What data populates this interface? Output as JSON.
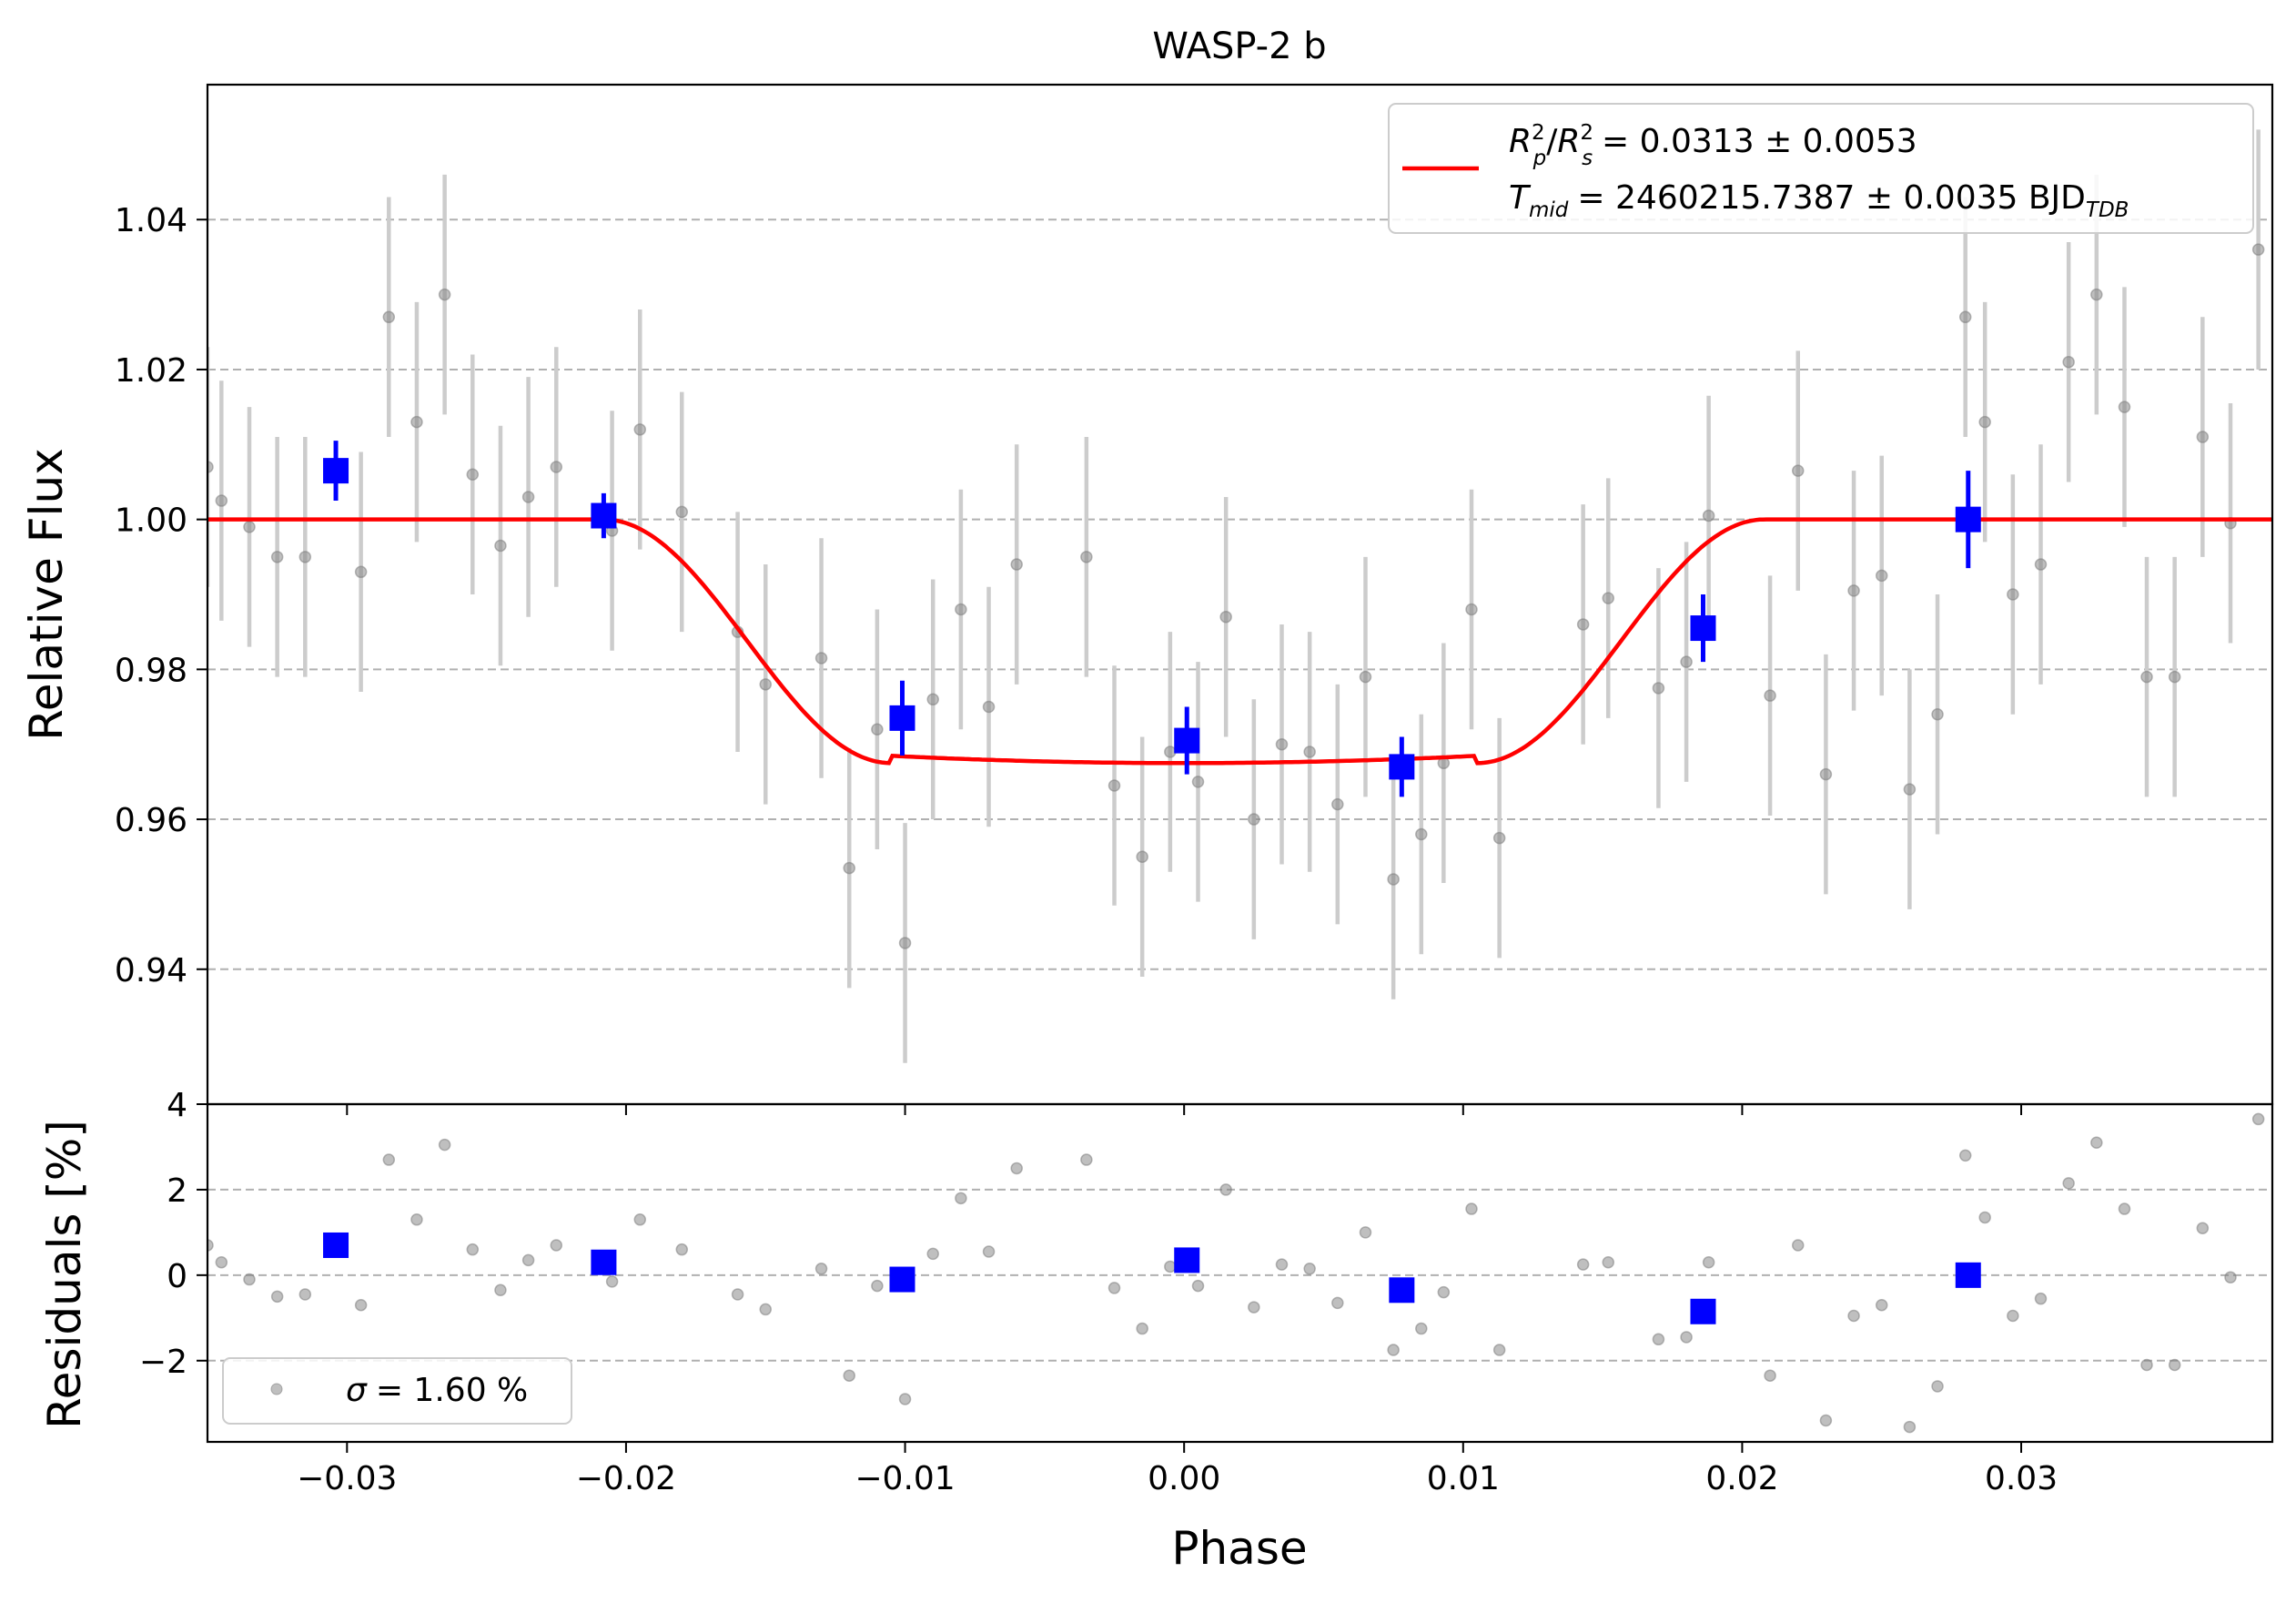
{
  "chart_data": [
    {
      "type": "scatter",
      "title": "WASP-2 b",
      "xlabel": "",
      "ylabel": "Relative Flux",
      "xlim": [
        -0.035,
        0.039
      ],
      "ylim": [
        0.922,
        1.058
      ],
      "grid": "horizontal-dashed",
      "xticks": [
        -0.03,
        -0.02,
        -0.01,
        0.0,
        0.01,
        0.02,
        0.03
      ],
      "yticks": [
        0.94,
        0.96,
        0.98,
        1.0,
        1.02,
        1.04
      ],
      "ytick_labels": [
        "0.94",
        "0.96",
        "0.98",
        "1.00",
        "1.02",
        "1.04"
      ],
      "legend": {
        "placement": "top-right",
        "label_prefix": "R",
        "label_p": "p",
        "label_s": "s",
        "label_sq": "2",
        "label_value": "= 0.0313 ± 0.0053",
        "label2_t": "T",
        "label2_mid": "mid",
        "label2_value": "= 2460215.7387 ± 0.0035 BJD",
        "label2_tdb": "TDB"
      },
      "model": {
        "name": "transit model",
        "color": "#ff0000",
        "baseline": 1.0,
        "depth": 0.0325,
        "t1": -0.0208,
        "t2": -0.0105,
        "t3": 0.0105,
        "t4": 0.0208
      },
      "raw_color": "#808080",
      "raw_error_color": "#cccccc",
      "binned_color": "#0000ff",
      "raw": [
        [
          -0.035,
          1.007,
          0.016
        ],
        [
          -0.0345,
          1.0025,
          0.016
        ],
        [
          -0.0335,
          0.999,
          0.016
        ],
        [
          -0.0325,
          0.995,
          0.016
        ],
        [
          -0.0315,
          0.995,
          0.016
        ],
        [
          -0.0295,
          0.993,
          0.016
        ],
        [
          -0.0285,
          1.027,
          0.016
        ],
        [
          -0.0275,
          1.013,
          0.016
        ],
        [
          -0.0265,
          1.03,
          0.016
        ],
        [
          -0.0255,
          1.006,
          0.016
        ],
        [
          -0.0245,
          0.9965,
          0.016
        ],
        [
          -0.0235,
          1.003,
          0.016
        ],
        [
          -0.0225,
          1.007,
          0.016
        ],
        [
          -0.0205,
          0.9985,
          0.016
        ],
        [
          -0.0195,
          1.012,
          0.016
        ],
        [
          -0.018,
          1.001,
          0.016
        ],
        [
          -0.016,
          0.985,
          0.016
        ],
        [
          -0.015,
          0.978,
          0.016
        ],
        [
          -0.013,
          0.9815,
          0.016
        ],
        [
          -0.012,
          0.9535,
          0.016
        ],
        [
          -0.011,
          0.972,
          0.016
        ],
        [
          -0.01,
          0.9435,
          0.016
        ],
        [
          -0.009,
          0.976,
          0.016
        ],
        [
          -0.008,
          0.988,
          0.016
        ],
        [
          -0.007,
          0.975,
          0.016
        ],
        [
          -0.006,
          0.994,
          0.016
        ],
        [
          -0.0035,
          0.995,
          0.016
        ],
        [
          -0.0025,
          0.9645,
          0.016
        ],
        [
          -0.0015,
          0.955,
          0.016
        ],
        [
          -0.0005,
          0.969,
          0.016
        ],
        [
          0.0005,
          0.965,
          0.016
        ],
        [
          0.0015,
          0.987,
          0.016
        ],
        [
          0.0025,
          0.96,
          0.016
        ],
        [
          0.0035,
          0.97,
          0.016
        ],
        [
          0.0045,
          0.969,
          0.016
        ],
        [
          0.0055,
          0.962,
          0.016
        ],
        [
          0.0065,
          0.979,
          0.016
        ],
        [
          0.0075,
          0.952,
          0.016
        ],
        [
          0.0085,
          0.958,
          0.016
        ],
        [
          0.0093,
          0.9675,
          0.016
        ],
        [
          0.0103,
          0.988,
          0.016
        ],
        [
          0.0113,
          0.9575,
          0.016
        ],
        [
          0.0143,
          0.986,
          0.016
        ],
        [
          0.0152,
          0.9895,
          0.016
        ],
        [
          0.017,
          0.9775,
          0.016
        ],
        [
          0.018,
          0.981,
          0.016
        ],
        [
          0.0188,
          1.0005,
          0.016
        ],
        [
          0.021,
          0.9765,
          0.016
        ],
        [
          0.022,
          1.0065,
          0.016
        ],
        [
          0.023,
          0.966,
          0.016
        ],
        [
          0.024,
          0.9905,
          0.016
        ],
        [
          0.025,
          0.9925,
          0.016
        ],
        [
          0.026,
          0.964,
          0.016
        ],
        [
          0.027,
          0.974,
          0.016
        ],
        [
          0.028,
          1.027,
          0.016
        ],
        [
          0.0287,
          1.013,
          0.016
        ],
        [
          0.0297,
          0.99,
          0.016
        ],
        [
          0.0307,
          0.994,
          0.016
        ],
        [
          0.0317,
          1.021,
          0.016
        ],
        [
          0.0327,
          1.03,
          0.016
        ],
        [
          0.0337,
          1.015,
          0.016
        ],
        [
          0.0345,
          0.979,
          0.016
        ],
        [
          0.0355,
          0.979,
          0.016
        ],
        [
          0.0365,
          1.011,
          0.016
        ],
        [
          0.0375,
          0.9995,
          0.016
        ],
        [
          0.0385,
          1.036,
          0.016
        ]
      ],
      "binned": [
        [
          -0.0304,
          1.0065,
          0.004
        ],
        [
          -0.0208,
          1.0005,
          0.003
        ],
        [
          -0.0101,
          0.9735,
          0.005
        ],
        [
          0.0001,
          0.9705,
          0.0045
        ],
        [
          0.0078,
          0.967,
          0.004
        ],
        [
          0.0186,
          0.9855,
          0.0045
        ],
        [
          0.0281,
          1.0,
          0.0065
        ]
      ]
    },
    {
      "type": "scatter",
      "title": "",
      "xlabel": "Phase",
      "ylabel": "Residuals [%]",
      "xlim": [
        -0.035,
        0.039
      ],
      "ylim": [
        -3.9,
        4.0
      ],
      "grid": "horizontal-dashed",
      "xticks": [
        -0.03,
        -0.02,
        -0.01,
        0.0,
        0.01,
        0.02,
        0.03
      ],
      "xtick_labels": [
        "−0.03",
        "−0.02",
        "−0.01",
        "0.00",
        "0.01",
        "0.02",
        "0.03"
      ],
      "yticks": [
        -2,
        0,
        2,
        4
      ],
      "ytick_labels": [
        "−2",
        "0",
        "2",
        "4"
      ],
      "legend": {
        "placement": "bottom-left",
        "sigma": "σ",
        "label": "= 1.60 %"
      },
      "raw_color": "#808080",
      "binned_color": "#0000ff",
      "raw": [
        [
          -0.035,
          0.7
        ],
        [
          -0.0345,
          0.3
        ],
        [
          -0.0335,
          -0.1
        ],
        [
          -0.0325,
          -0.5
        ],
        [
          -0.0315,
          -0.45
        ],
        [
          -0.0295,
          -0.7
        ],
        [
          -0.0285,
          2.7
        ],
        [
          -0.0275,
          1.3
        ],
        [
          -0.0265,
          3.05
        ],
        [
          -0.0255,
          0.6
        ],
        [
          -0.0245,
          -0.35
        ],
        [
          -0.0235,
          0.35
        ],
        [
          -0.0225,
          0.7
        ],
        [
          -0.0205,
          -0.15
        ],
        [
          -0.0195,
          1.3
        ],
        [
          -0.018,
          0.6
        ],
        [
          -0.016,
          -0.45
        ],
        [
          -0.015,
          -0.8
        ],
        [
          -0.013,
          0.15
        ],
        [
          -0.012,
          -2.35
        ],
        [
          -0.011,
          -0.25
        ],
        [
          -0.01,
          -2.9
        ],
        [
          -0.009,
          0.5
        ],
        [
          -0.008,
          1.8
        ],
        [
          -0.007,
          0.55
        ],
        [
          -0.006,
          2.5
        ],
        [
          -0.0035,
          2.7
        ],
        [
          -0.0025,
          -0.3
        ],
        [
          -0.0015,
          -1.25
        ],
        [
          -0.0005,
          0.2
        ],
        [
          0.0005,
          -0.25
        ],
        [
          0.0015,
          2.0
        ],
        [
          0.0025,
          -0.75
        ],
        [
          0.0035,
          0.25
        ],
        [
          0.0045,
          0.15
        ],
        [
          0.0055,
          -0.65
        ],
        [
          0.0065,
          1.0
        ],
        [
          0.0075,
          -1.75
        ],
        [
          0.0085,
          -1.25
        ],
        [
          0.0093,
          -0.4
        ],
        [
          0.0103,
          1.55
        ],
        [
          0.0113,
          -1.75
        ],
        [
          0.0143,
          0.25
        ],
        [
          0.0152,
          0.3
        ],
        [
          0.017,
          -1.5
        ],
        [
          0.018,
          -1.45
        ],
        [
          0.0188,
          0.3
        ],
        [
          0.021,
          -2.35
        ],
        [
          0.022,
          0.7
        ],
        [
          0.023,
          -3.4
        ],
        [
          0.024,
          -0.95
        ],
        [
          0.025,
          -0.7
        ],
        [
          0.026,
          -3.55
        ],
        [
          0.027,
          -2.6
        ],
        [
          0.028,
          2.8
        ],
        [
          0.0287,
          1.35
        ],
        [
          0.0297,
          -0.95
        ],
        [
          0.0307,
          -0.55
        ],
        [
          0.0317,
          2.15
        ],
        [
          0.0327,
          3.1
        ],
        [
          0.0337,
          1.55
        ],
        [
          0.0345,
          -2.1
        ],
        [
          0.0355,
          -2.1
        ],
        [
          0.0365,
          1.1
        ],
        [
          0.0375,
          -0.05
        ],
        [
          0.0385,
          3.65
        ]
      ],
      "binned": [
        [
          -0.0304,
          0.7
        ],
        [
          -0.0208,
          0.3
        ],
        [
          -0.0101,
          -0.1
        ],
        [
          0.0001,
          0.35
        ],
        [
          0.0078,
          -0.35
        ],
        [
          0.0186,
          -0.85
        ],
        [
          0.0281,
          0.0
        ]
      ]
    }
  ]
}
